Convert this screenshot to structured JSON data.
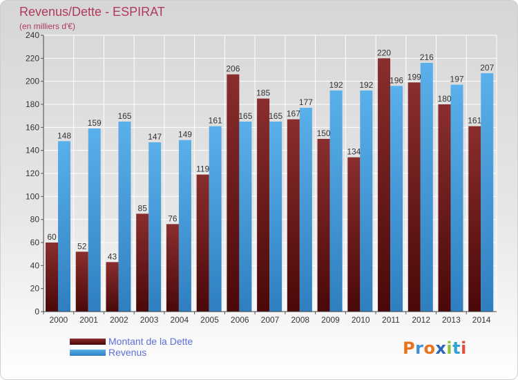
{
  "colors": {
    "title": "#b03a5b",
    "debt": "#7a1f1f",
    "revenue": "#3c95d6",
    "legend_text": "#5b6fd6"
  },
  "chart_data": {
    "type": "bar",
    "title": "Revenus/Dette - ESPIRAT",
    "subtitle": "(en milliers d'€)",
    "categories": [
      "2000",
      "2001",
      "2002",
      "2003",
      "2004",
      "2005",
      "2006",
      "2007",
      "2008",
      "2009",
      "2010",
      "2011",
      "2012",
      "2013",
      "2014"
    ],
    "series": [
      {
        "name": "Montant de la Dette",
        "values": [
          60,
          52,
          43,
          85,
          76,
          119,
          206,
          185,
          167,
          150,
          134,
          220,
          199,
          180,
          161
        ]
      },
      {
        "name": "Revenus",
        "values": [
          148,
          159,
          165,
          147,
          149,
          161,
          165,
          165,
          177,
          192,
          192,
          196,
          216,
          197,
          207
        ]
      }
    ],
    "ylim": [
      0,
      240
    ],
    "yticks": [
      0,
      20,
      40,
      60,
      80,
      100,
      120,
      140,
      160,
      180,
      200,
      220,
      240
    ],
    "grid": true,
    "legend_position": "bottom-left"
  },
  "logo": {
    "text": "Proxiti",
    "letter_colors": [
      "#e8731c",
      "#3e8fd6",
      "#e8731c",
      "#2b64b9",
      "#8ac53e",
      "#2fa1d6",
      "#e84c3d"
    ]
  }
}
